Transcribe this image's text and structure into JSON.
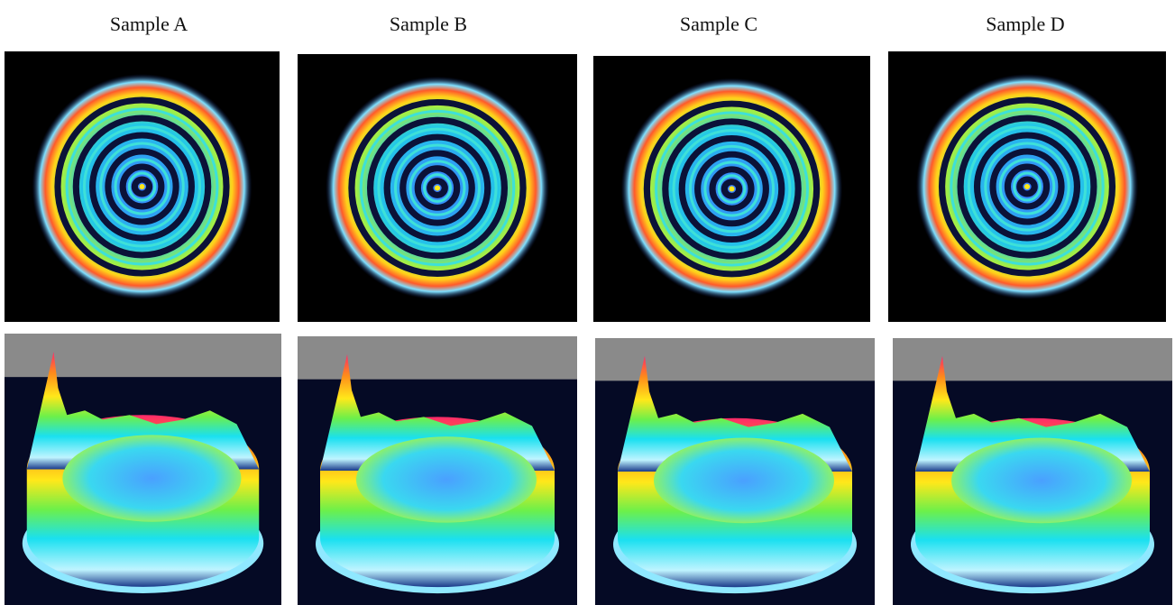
{
  "samples": [
    {
      "label": "Sample A"
    },
    {
      "label": "Sample B"
    },
    {
      "label": "Sample C"
    },
    {
      "label": "Sample D"
    }
  ]
}
